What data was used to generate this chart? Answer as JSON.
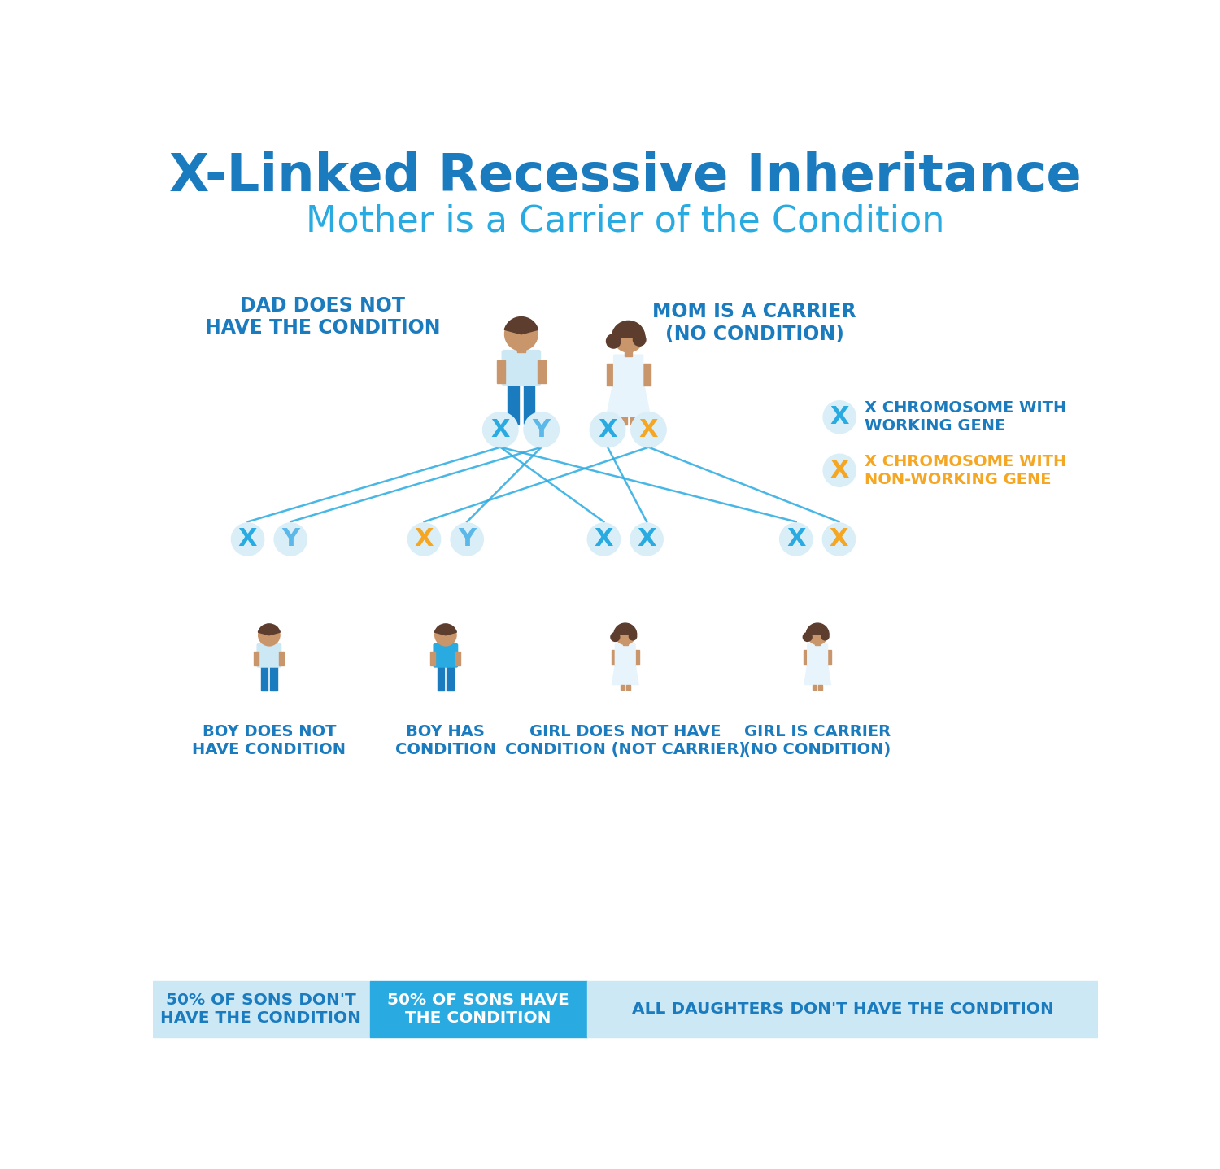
{
  "title": "X-Linked Recessive Inheritance",
  "subtitle": "Mother is a Carrier of the Condition",
  "title_color": "#1a7bbf",
  "subtitle_color": "#29abe2",
  "bg_color": "#ffffff",
  "dad_label": "DAD DOES NOT\nHAVE THE CONDITION",
  "mom_label": "MOM IS A CARRIER\n(NO CONDITION)",
  "legend_x_working": "X CHROMOSOME WITH\nWORKING GENE",
  "legend_x_nonworking": "X CHROMOSOME WITH\nNON-WORKING GENE",
  "child_labels": [
    "BOY DOES NOT\nHAVE CONDITION",
    "BOY HAS\nCONDITION",
    "GIRL DOES NOT HAVE\nCONDITION (NOT CARRIER)",
    "GIRL IS CARRIER\n(NO CONDITION)"
  ],
  "footer_left1": "50% OF SONS DON'T\nHAVE THE CONDITION",
  "footer_left2": "50% OF SONS HAVE\nTHE CONDITION",
  "footer_right": "ALL DAUGHTERS DON'T HAVE THE CONDITION",
  "skin_color": "#c9956a",
  "hair_dark": "#5c3d2e",
  "shirt_light": "#cde8f5",
  "pants_blue": "#1a7bbf",
  "dress_white": "#e8f4fc",
  "boy_sick_shirt": "#29abe2",
  "label_blue": "#1a7bbf",
  "orange": "#f5a623",
  "y_letter_color": "#5bb8e8",
  "circle_blue_light": "#daeef8",
  "circle_outline": "#29abe2",
  "line_color": "#29abe2",
  "footer_bg1": "#cde8f5",
  "footer_bg2": "#29abe2",
  "footer_bg3": "#cde8f5"
}
